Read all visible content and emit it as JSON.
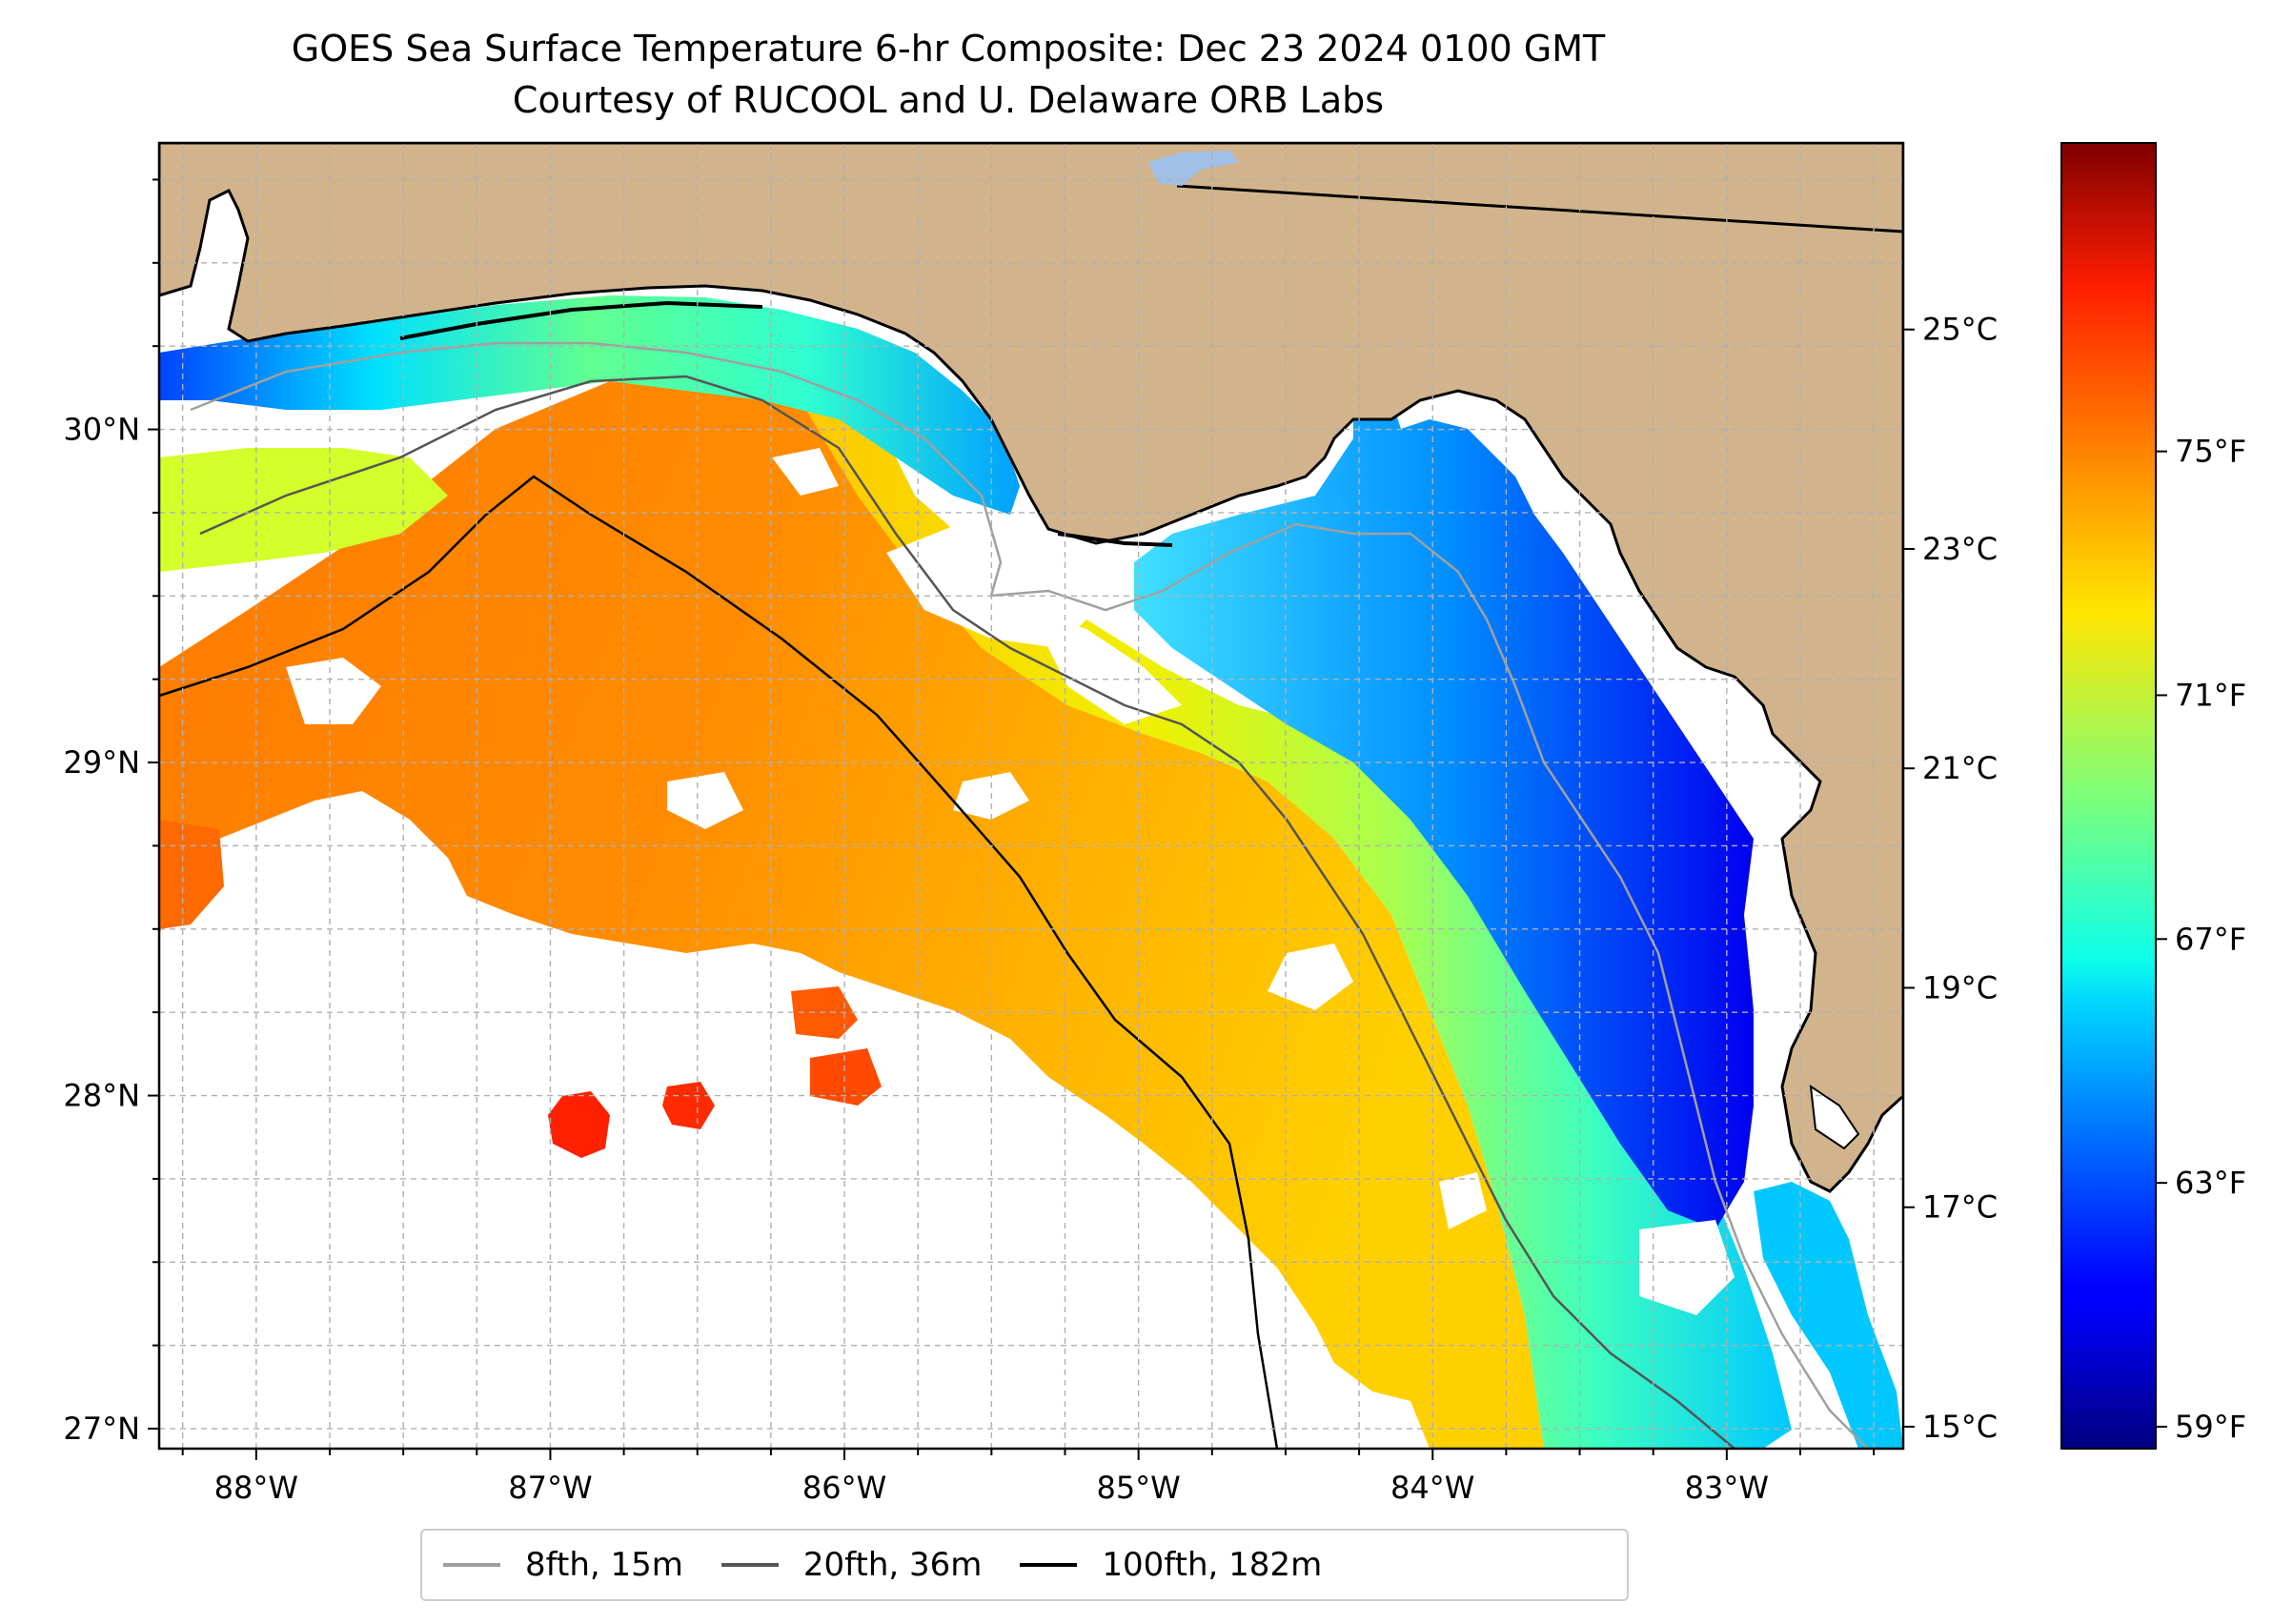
{
  "title": {
    "line1": "GOES Sea Surface Temperature 6-hr Composite: Dec 23 2024 0100 GMT",
    "line2": "Courtesy of RUCOOL and U. Delaware ORB Labs"
  },
  "map": {
    "lon_range": [
      -88.33,
      -82.4
    ],
    "lat_range": [
      26.94,
      30.86
    ],
    "lon_ticks": [
      {
        "value": -88,
        "label": "88°W"
      },
      {
        "value": -87,
        "label": "87°W"
      },
      {
        "value": -86,
        "label": "86°W"
      },
      {
        "value": -85,
        "label": "85°W"
      },
      {
        "value": -84,
        "label": "84°W"
      },
      {
        "value": -83,
        "label": "83°W"
      }
    ],
    "lat_ticks": [
      {
        "value": 27,
        "label": "27°N"
      },
      {
        "value": 28,
        "label": "28°N"
      },
      {
        "value": 29,
        "label": "29°N"
      },
      {
        "value": 30,
        "label": "30°N"
      }
    ],
    "land_color": "#d2b48c",
    "no_data_color": "#ffffff",
    "gridlines": true
  },
  "colorbar": {
    "colormap": "jet",
    "range_c": [
      14.8,
      26.7
    ],
    "celsius_ticks": [
      {
        "value": 15,
        "label": "15°C"
      },
      {
        "value": 17,
        "label": "17°C"
      },
      {
        "value": 19,
        "label": "19°C"
      },
      {
        "value": 21,
        "label": "21°C"
      },
      {
        "value": 23,
        "label": "23°C"
      },
      {
        "value": 25,
        "label": "25°C"
      }
    ],
    "fahrenheit_ticks": [
      {
        "value": 59,
        "label": "59°F"
      },
      {
        "value": 63,
        "label": "63°F"
      },
      {
        "value": 67,
        "label": "67°F"
      },
      {
        "value": 71,
        "label": "71°F"
      },
      {
        "value": 75,
        "label": "75°F"
      }
    ]
  },
  "legend": {
    "items": [
      {
        "label": "8fth, 15m",
        "color": "#a0a0a0"
      },
      {
        "label": "20fth, 36m",
        "color": "#555555"
      },
      {
        "label": "100fth, 182m",
        "color": "#000000"
      }
    ]
  }
}
